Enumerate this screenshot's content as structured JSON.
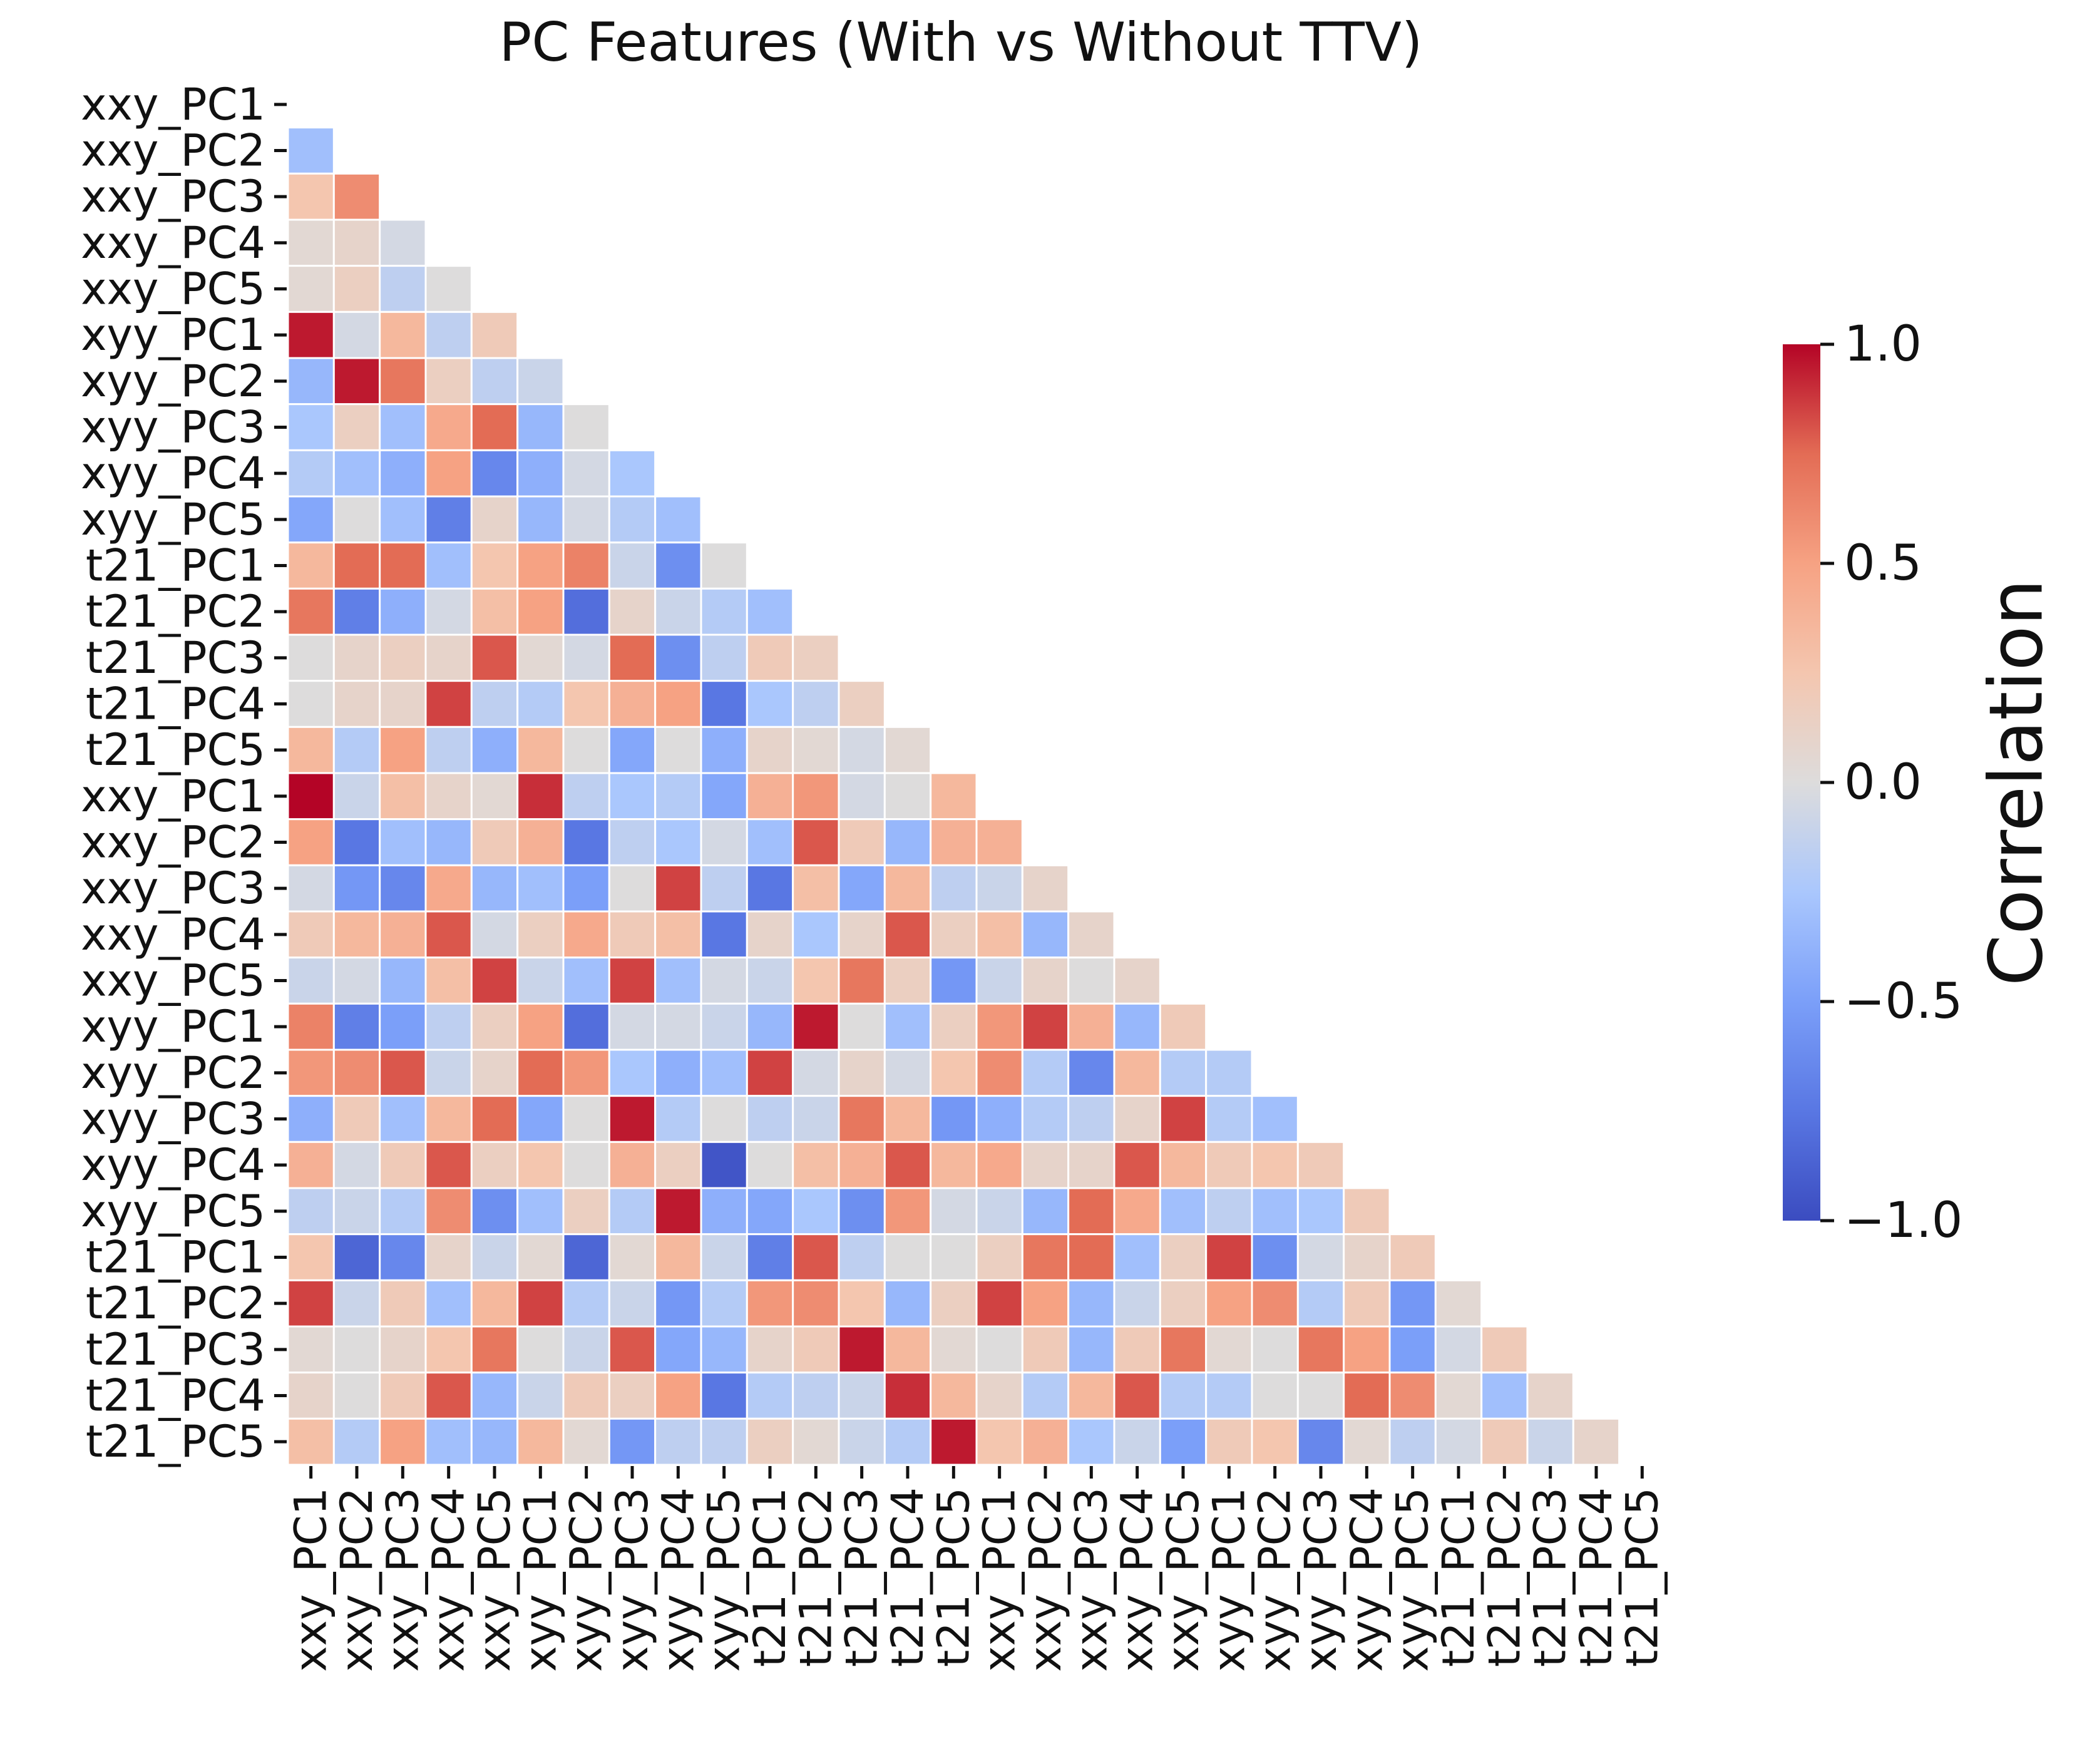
{
  "chart_data": {
    "type": "heatmap",
    "title": "PC Features (With vs Without TTV)",
    "labels": [
      "xxy_PC1",
      "xxy_PC2",
      "xxy_PC3",
      "xxy_PC4",
      "xxy_PC5",
      "xyy_PC1",
      "xyy_PC2",
      "xyy_PC3",
      "xyy_PC4",
      "xyy_PC5",
      "t21_PC1",
      "t21_PC2",
      "t21_PC3",
      "t21_PC4",
      "t21_PC5",
      "xxy_PC1",
      "xxy_PC2",
      "xxy_PC3",
      "xxy_PC4",
      "xxy_PC5",
      "xyy_PC1",
      "xyy_PC2",
      "xyy_PC3",
      "xyy_PC4",
      "xyy_PC5",
      "t21_PC1",
      "t21_PC2",
      "t21_PC3",
      "t21_PC4",
      "t21_PC5"
    ],
    "mask": "upper triangle including diagonal",
    "values": [
      [],
      [
        -0.3
      ],
      [
        0.25,
        0.6
      ],
      [
        0.05,
        0.1,
        -0.05
      ],
      [
        0.05,
        0.15,
        -0.15,
        0
      ],
      [
        0.95,
        -0.05,
        0.35,
        -0.15,
        0.2
      ],
      [
        -0.35,
        0.95,
        0.7,
        0.15,
        -0.15,
        -0.1
      ],
      [
        -0.25,
        0.15,
        -0.3,
        0.45,
        0.75,
        -0.35,
        0
      ],
      [
        -0.2,
        -0.3,
        -0.4,
        0.5,
        -0.65,
        -0.4,
        -0.05,
        -0.25
      ],
      [
        -0.45,
        0,
        -0.3,
        -0.7,
        0.1,
        -0.35,
        -0.05,
        -0.2,
        -0.3
      ],
      [
        0.35,
        0.75,
        0.75,
        -0.3,
        0.25,
        0.5,
        0.65,
        -0.1,
        -0.6,
        0
      ],
      [
        0.7,
        -0.7,
        -0.4,
        -0.05,
        0.3,
        0.5,
        -0.8,
        0.1,
        -0.1,
        -0.2,
        -0.3
      ],
      [
        0,
        0.1,
        0.15,
        0.1,
        0.8,
        0.05,
        -0.05,
        0.75,
        -0.6,
        -0.15,
        0.2,
        0.15
      ],
      [
        0,
        0.1,
        0.1,
        0.85,
        -0.15,
        -0.2,
        0.25,
        0.4,
        0.5,
        -0.75,
        -0.25,
        -0.15,
        0.15
      ],
      [
        0.35,
        -0.2,
        0.5,
        -0.15,
        -0.4,
        0.35,
        0,
        -0.45,
        0,
        -0.4,
        0.1,
        0.05,
        -0.05,
        0.05
      ],
      [
        1.0,
        -0.1,
        0.3,
        0.1,
        0.05,
        0.9,
        -0.15,
        -0.25,
        -0.2,
        -0.45,
        0.4,
        0.55,
        -0.05,
        0,
        0.35
      ],
      [
        0.5,
        -0.75,
        -0.3,
        -0.35,
        0.2,
        0.4,
        -0.75,
        -0.15,
        -0.25,
        -0.05,
        -0.3,
        0.8,
        0.2,
        -0.35,
        0.4,
        0.4
      ],
      [
        -0.05,
        -0.55,
        -0.65,
        0.45,
        -0.35,
        -0.3,
        -0.5,
        0,
        0.85,
        -0.15,
        -0.75,
        0.3,
        -0.45,
        0.35,
        -0.15,
        -0.1,
        0.1
      ],
      [
        0.2,
        0.35,
        0.4,
        0.8,
        -0.05,
        0.15,
        0.45,
        0.2,
        0.3,
        -0.75,
        0.1,
        -0.25,
        0.1,
        0.8,
        0.15,
        0.3,
        -0.35,
        0.1
      ],
      [
        -0.1,
        -0.05,
        -0.35,
        0.3,
        0.85,
        -0.1,
        -0.3,
        0.85,
        -0.3,
        -0.05,
        -0.1,
        0.25,
        0.7,
        0.15,
        -0.55,
        -0.1,
        0.1,
        0,
        0.1
      ],
      [
        0.65,
        -0.7,
        -0.5,
        -0.15,
        0.15,
        0.5,
        -0.8,
        -0.05,
        -0.05,
        -0.1,
        -0.35,
        0.95,
        0,
        -0.3,
        0.15,
        0.55,
        0.85,
        0.4,
        -0.35,
        0.2
      ],
      [
        0.55,
        0.6,
        0.8,
        -0.1,
        0.1,
        0.75,
        0.55,
        -0.25,
        -0.4,
        -0.3,
        0.85,
        -0.05,
        0.1,
        -0.05,
        0.25,
        0.6,
        -0.2,
        -0.65,
        0.35,
        -0.2,
        -0.2
      ],
      [
        -0.4,
        0.2,
        -0.3,
        0.35,
        0.75,
        -0.45,
        0,
        0.95,
        -0.2,
        0,
        -0.15,
        -0.1,
        0.7,
        0.35,
        -0.55,
        -0.4,
        -0.2,
        -0.15,
        0.1,
        0.85,
        -0.2,
        -0.3
      ],
      [
        0.4,
        -0.05,
        0.2,
        0.8,
        0.15,
        0.25,
        0,
        0.4,
        0.15,
        -0.95,
        0,
        0.3,
        0.4,
        0.8,
        0.35,
        0.45,
        0.1,
        0.1,
        0.8,
        0.35,
        0.2,
        0.25,
        0.2
      ],
      [
        -0.15,
        -0.1,
        -0.2,
        0.6,
        -0.6,
        -0.3,
        0.15,
        -0.2,
        0.95,
        -0.4,
        -0.45,
        -0.25,
        -0.6,
        0.55,
        -0.05,
        -0.1,
        -0.35,
        0.75,
        0.45,
        -0.3,
        -0.15,
        -0.3,
        -0.25,
        0.2
      ],
      [
        0.25,
        -0.85,
        -0.65,
        0.1,
        -0.1,
        0.05,
        -0.85,
        0.05,
        0.35,
        -0.1,
        -0.7,
        0.8,
        -0.15,
        0,
        0,
        0.15,
        0.7,
        0.75,
        -0.3,
        0.15,
        0.85,
        -0.6,
        -0.05,
        0.1,
        0.2
      ],
      [
        0.85,
        -0.1,
        0.2,
        -0.3,
        0.35,
        0.85,
        -0.2,
        -0.1,
        -0.55,
        -0.2,
        0.55,
        0.6,
        0.25,
        -0.35,
        0.15,
        0.85,
        0.5,
        -0.35,
        -0.1,
        0.15,
        0.5,
        0.6,
        -0.2,
        0.2,
        -0.55,
        0.05
      ],
      [
        0.05,
        0,
        0.1,
        0.25,
        0.7,
        0,
        -0.1,
        0.8,
        -0.45,
        -0.35,
        0.1,
        0.2,
        0.95,
        0.35,
        0.05,
        0,
        0.2,
        -0.35,
        0.2,
        0.7,
        0.05,
        0,
        0.7,
        0.5,
        -0.5,
        -0.05,
        0.2
      ],
      [
        0.1,
        0,
        0.2,
        0.8,
        -0.35,
        -0.1,
        0.2,
        0.15,
        0.5,
        -0.75,
        -0.2,
        -0.15,
        -0.1,
        0.9,
        0.35,
        0.1,
        -0.2,
        0.35,
        0.8,
        -0.2,
        -0.2,
        0,
        0,
        0.75,
        0.6,
        0.05,
        -0.3,
        0.1
      ],
      [
        0.3,
        -0.2,
        0.5,
        -0.3,
        -0.35,
        0.35,
        0.05,
        -0.55,
        -0.15,
        -0.15,
        0.15,
        0.05,
        -0.1,
        -0.2,
        0.95,
        0.25,
        0.4,
        -0.25,
        -0.1,
        -0.5,
        0.2,
        0.25,
        -0.65,
        0.05,
        -0.15,
        -0.05,
        0.2,
        -0.1,
        0.1
      ]
    ],
    "colorbar": {
      "label": "Correlation",
      "range": [
        -1.0,
        1.0
      ],
      "ticks": [
        "1.0",
        "0.5",
        "0.0",
        "−0.5",
        "−1.0"
      ],
      "tick_values": [
        1.0,
        0.5,
        0.0,
        -0.5,
        -1.0
      ],
      "colormap": "coolwarm",
      "low_color": "#3b4cc0",
      "mid_color": "#dddddd",
      "high_color": "#b40426"
    },
    "grid": false
  }
}
